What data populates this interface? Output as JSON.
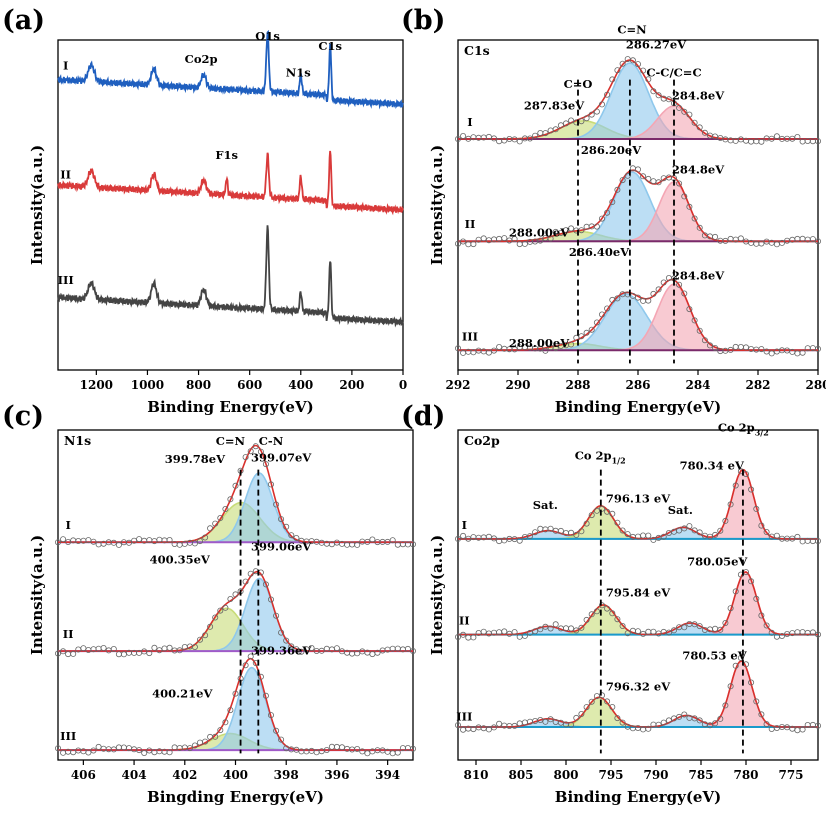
{
  "chart_data": [
    {
      "panel": "(a)",
      "type": "line",
      "title": "",
      "xlabel": "Binding Energy(eV)",
      "ylabel": "Intensity(a.u.)",
      "xlim": [
        1350,
        0
      ],
      "xticks": [
        1200,
        1000,
        800,
        600,
        400,
        200,
        0
      ],
      "series": [
        {
          "name": "I",
          "color": "#1f5fbf",
          "base": 0.82,
          "slope": 0.06,
          "peaks": [
            [
              1220,
              0.05,
              12
            ],
            [
              975,
              0.05,
              10
            ],
            [
              780,
              0.04,
              10
            ],
            [
              530,
              0.18,
              5
            ],
            [
              400,
              0.06,
              4
            ],
            [
              285,
              0.17,
              4
            ]
          ]
        },
        {
          "name": "II",
          "color": "#d93a3a",
          "base": 0.5,
          "slope": 0.06,
          "peaks": [
            [
              1220,
              0.05,
              12
            ],
            [
              975,
              0.05,
              10
            ],
            [
              780,
              0.04,
              10
            ],
            [
              690,
              0.05,
              4
            ],
            [
              530,
              0.13,
              5
            ],
            [
              400,
              0.07,
              4
            ],
            [
              285,
              0.17,
              4
            ]
          ]
        },
        {
          "name": "III",
          "color": "#444444",
          "base": 0.16,
          "slope": 0.06,
          "peaks": [
            [
              1220,
              0.05,
              12
            ],
            [
              975,
              0.06,
              10
            ],
            [
              780,
              0.05,
              10
            ],
            [
              530,
              0.25,
              5
            ],
            [
              400,
              0.06,
              4
            ],
            [
              285,
              0.18,
              4
            ]
          ]
        }
      ],
      "annotations": [
        {
          "text": "I",
          "x": 1320,
          "y": 0.91
        },
        {
          "text": "II",
          "x": 1320,
          "y": 0.58
        },
        {
          "text": "III",
          "x": 1320,
          "y": 0.26
        },
        {
          "text": "Co2p",
          "x": 790,
          "y": 0.93
        },
        {
          "text": "O1s",
          "x": 530,
          "y": 1.0
        },
        {
          "text": "N1s",
          "x": 410,
          "y": 0.89
        },
        {
          "text": "C1s",
          "x": 285,
          "y": 0.97
        },
        {
          "text": "F1s",
          "x": 690,
          "y": 0.64
        }
      ]
    },
    {
      "panel": "(b)",
      "type": "line",
      "title": "C1s",
      "xlabel": "Binding Energy(eV)",
      "ylabel": "Intensity(a.u.)",
      "xlim": [
        292,
        280
      ],
      "xticks": [
        292,
        290,
        288,
        286,
        284,
        282,
        280
      ],
      "spectra": [
        {
          "name": "I",
          "base": 0.7,
          "peaks": [
            [
              287.83,
              0.055,
              0.75
            ],
            [
              286.27,
              0.23,
              0.62
            ],
            [
              284.8,
              0.1,
              0.55
            ]
          ]
        },
        {
          "name": "II",
          "base": 0.39,
          "peaks": [
            [
              288.0,
              0.03,
              0.75
            ],
            [
              286.2,
              0.21,
              0.6
            ],
            [
              284.8,
              0.18,
              0.5
            ]
          ]
        },
        {
          "name": "III",
          "base": 0.06,
          "peaks": [
            [
              288.0,
              0.02,
              0.75
            ],
            [
              286.4,
              0.17,
              0.7
            ],
            [
              284.8,
              0.2,
              0.55
            ]
          ]
        }
      ],
      "component_colors": [
        "#c8dc78",
        "#8fc8ec",
        "#f4a6b4"
      ],
      "envelope_color": "#d9302c",
      "baseline_color": "#7a2a6a",
      "dashed_x": [
        288.0,
        286.27,
        284.8
      ],
      "annotations": [
        {
          "text": "I",
          "x": 291.6,
          "y": 0.74
        },
        {
          "text": "II",
          "x": 291.6,
          "y": 0.43
        },
        {
          "text": "III",
          "x": 291.6,
          "y": 0.09
        },
        {
          "text": "C=N",
          "x": 286.2,
          "y": 1.02
        },
        {
          "text": "286.27eV",
          "x": 285.4,
          "y": 0.975
        },
        {
          "text": "C-C/C=C",
          "x": 284.8,
          "y": 0.89
        },
        {
          "text": "284.8eV",
          "x": 284.0,
          "y": 0.82
        },
        {
          "text": "C=O",
          "x": 288.0,
          "y": 0.855
        },
        {
          "text": "287.83eV",
          "x": 288.8,
          "y": 0.79
        },
        {
          "text": "286.20eV",
          "x": 286.9,
          "y": 0.655
        },
        {
          "text": "284.8eV",
          "x": 284.0,
          "y": 0.595
        },
        {
          "text": "288.00eV",
          "x": 289.3,
          "y": 0.405
        },
        {
          "text": "286.40eV",
          "x": 287.3,
          "y": 0.345
        },
        {
          "text": "284.8eV",
          "x": 284.0,
          "y": 0.275
        },
        {
          "text": "288.00eV",
          "x": 289.3,
          "y": 0.07
        }
      ]
    },
    {
      "panel": "(c)",
      "type": "line",
      "title": "N1s",
      "xlabel": "Bingding Energy(eV)",
      "ylabel": "Intensity(a.u.)",
      "xlim": [
        407,
        393
      ],
      "xticks": [
        406,
        404,
        402,
        400,
        398,
        396,
        394
      ],
      "spectra": [
        {
          "name": "I",
          "base": 0.66,
          "peaks": [
            [
              399.78,
              0.12,
              0.75
            ],
            [
              399.07,
              0.21,
              0.55
            ]
          ]
        },
        {
          "name": "II",
          "base": 0.33,
          "peaks": [
            [
              400.35,
              0.13,
              0.65
            ],
            [
              399.06,
              0.22,
              0.55
            ]
          ]
        },
        {
          "name": "III",
          "base": 0.03,
          "peaks": [
            [
              400.21,
              0.05,
              0.75
            ],
            [
              399.36,
              0.25,
              0.55
            ]
          ]
        }
      ],
      "component_colors": [
        "#c8dc78",
        "#8fc8ec"
      ],
      "envelope_color": "#d9302c",
      "baseline_color": "#a05ac8",
      "dashed_x": [
        399.8,
        399.1
      ],
      "annotations": [
        {
          "text": "I",
          "x": 406.6,
          "y": 0.7
        },
        {
          "text": "II",
          "x": 406.6,
          "y": 0.37
        },
        {
          "text": "III",
          "x": 406.6,
          "y": 0.06
        },
        {
          "text": "C=N",
          "x": 400.2,
          "y": 0.955
        },
        {
          "text": "C-N",
          "x": 398.6,
          "y": 0.955
        },
        {
          "text": "399.78eV",
          "x": 401.6,
          "y": 0.9
        },
        {
          "text": "399.07eV",
          "x": 398.2,
          "y": 0.905
        },
        {
          "text": "400.35eV",
          "x": 402.2,
          "y": 0.595
        },
        {
          "text": "399.06eV",
          "x": 398.2,
          "y": 0.635
        },
        {
          "text": "400.21eV",
          "x": 402.1,
          "y": 0.19
        },
        {
          "text": "399.36eV",
          "x": 398.2,
          "y": 0.32
        }
      ]
    },
    {
      "panel": "(d)",
      "type": "line",
      "title": "Co2p",
      "xlabel": "Binding Energy(eV)",
      "ylabel": "Intensity(a.u.)",
      "xlim": [
        812,
        772
      ],
      "xticks": [
        810,
        805,
        800,
        795,
        790,
        785,
        780,
        775
      ],
      "spectra": [
        {
          "name": "I",
          "base": 0.67,
          "peaks": [
            [
              802,
              0.025,
              1.5
            ],
            [
              796.13,
              0.1,
              1.4
            ],
            [
              787,
              0.035,
              1.4
            ],
            [
              780.34,
              0.21,
              1.2
            ]
          ]
        },
        {
          "name": "II",
          "base": 0.38,
          "peaks": [
            [
              802,
              0.025,
              1.5
            ],
            [
              795.84,
              0.09,
              1.4
            ],
            [
              786.2,
              0.035,
              1.4
            ],
            [
              780.05,
              0.19,
              1.2
            ]
          ]
        },
        {
          "name": "III",
          "base": 0.1,
          "peaks": [
            [
              802,
              0.025,
              1.5
            ],
            [
              796.32,
              0.09,
              1.4
            ],
            [
              786.6,
              0.035,
              1.4
            ],
            [
              780.53,
              0.2,
              1.2
            ]
          ]
        }
      ],
      "component_colors": [
        "#8fc8ec",
        "#c8dc78",
        "#8fc8ec",
        "#f4a6b4"
      ],
      "envelope_color": "#d9302c",
      "baseline_color": "#1a9acb",
      "dashed_x": [
        796.13,
        780.34
      ],
      "annotations": [
        {
          "text": "I",
          "x": 811.3,
          "y": 0.7
        },
        {
          "text": "II",
          "x": 811.3,
          "y": 0.41
        },
        {
          "text": "III",
          "x": 811.3,
          "y": 0.12
        },
        {
          "text": "Sat.",
          "x": 802.3,
          "y": 0.76
        },
        {
          "text": "Sat.",
          "x": 787.3,
          "y": 0.745
        },
        {
          "text": "796.13 eV",
          "x": 792.0,
          "y": 0.78
        },
        {
          "text": "780.34 eV",
          "x": 783.8,
          "y": 0.88
        },
        {
          "text": "795.84 eV",
          "x": 792.0,
          "y": 0.495
        },
        {
          "text": "780.05eV",
          "x": 783.2,
          "y": 0.59
        },
        {
          "text": "796.32 eV",
          "x": 792.0,
          "y": 0.21
        },
        {
          "text": "780.53 eV",
          "x": 783.5,
          "y": 0.305
        }
      ],
      "subscript_labels": [
        {
          "main": "Co 2p",
          "sub": "1/2",
          "x": 796.2,
          "y": 0.91
        },
        {
          "main": "Co 2p",
          "sub": "3/2",
          "x": 780.3,
          "y": 0.995
        }
      ]
    }
  ]
}
